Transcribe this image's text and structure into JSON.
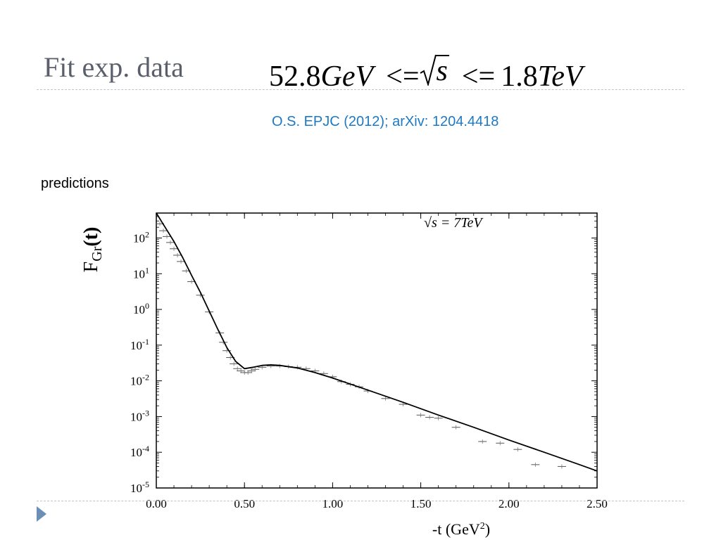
{
  "slide": {
    "title": "Fit exp. data",
    "formula": {
      "left_value": "52.8",
      "left_unit": "GeV",
      "op1": "<=",
      "sqrt_var": "s",
      "op2": "<=",
      "right_value": "1.8",
      "right_unit": "TeV"
    },
    "citation": "O.S. EPJC (2012); arXiv: 1204.4418",
    "subtitle": "predictions",
    "accent_color": "#1d79c4",
    "title_color": "#5a5f6b"
  },
  "chart_data": {
    "type": "line",
    "ylabel": "FGr(t)",
    "xlabel": "-t (GeV2)",
    "annotation": "√s = 7TeV",
    "y_scale": "log",
    "xlim": [
      0.0,
      2.5
    ],
    "ylim": [
      1e-05,
      500
    ],
    "x_ticks": [
      "0.00",
      "0.50",
      "1.00",
      "1.50",
      "2.00",
      "2.50"
    ],
    "x_tick_values": [
      0.0,
      0.5,
      1.0,
      1.5,
      2.0,
      2.5
    ],
    "y_ticks": [
      {
        "base": "10",
        "exp": "2",
        "value": 100
      },
      {
        "base": "10",
        "exp": "1",
        "value": 10
      },
      {
        "base": "10",
        "exp": "0",
        "value": 1
      },
      {
        "base": "10",
        "exp": "-1",
        "value": 0.1
      },
      {
        "base": "10",
        "exp": "-2",
        "value": 0.01
      },
      {
        "base": "10",
        "exp": "-3",
        "value": 0.001
      },
      {
        "base": "10",
        "exp": "-4",
        "value": 0.0001
      },
      {
        "base": "10",
        "exp": "-5",
        "value": 1e-05
      }
    ],
    "series": [
      {
        "kind": "fit-curve",
        "x": [
          0.0,
          0.05,
          0.1,
          0.15,
          0.2,
          0.25,
          0.3,
          0.35,
          0.4,
          0.45,
          0.5,
          0.55,
          0.6,
          0.65,
          0.7,
          0.8,
          0.9,
          1.0,
          1.2,
          1.4,
          1.6,
          1.8,
          2.0,
          2.2,
          2.4,
          2.5
        ],
        "y": [
          500,
          200,
          80,
          28,
          9,
          3,
          0.9,
          0.27,
          0.085,
          0.035,
          0.022,
          0.024,
          0.027,
          0.028,
          0.027,
          0.023,
          0.017,
          0.012,
          0.0055,
          0.0025,
          0.0011,
          0.0005,
          0.00022,
          0.0001,
          4.5e-05,
          3e-05
        ]
      },
      {
        "kind": "data-points",
        "x": [
          0.02,
          0.04,
          0.06,
          0.08,
          0.1,
          0.12,
          0.14,
          0.17,
          0.2,
          0.25,
          0.3,
          0.36,
          0.38,
          0.4,
          0.42,
          0.44,
          0.46,
          0.48,
          0.5,
          0.52,
          0.54,
          0.56,
          0.6,
          0.65,
          0.7,
          0.75,
          0.8,
          0.85,
          0.9,
          0.95,
          1.0,
          1.05,
          1.1,
          1.15,
          1.2,
          1.3,
          1.4,
          1.5,
          1.55,
          1.6,
          1.7,
          1.85,
          1.95,
          2.05,
          2.15,
          2.3
        ],
        "y": [
          250,
          160,
          110,
          75,
          50,
          33,
          22,
          12,
          6,
          2.5,
          0.85,
          0.22,
          0.12,
          0.07,
          0.045,
          0.03,
          0.022,
          0.019,
          0.017,
          0.017,
          0.019,
          0.021,
          0.024,
          0.026,
          0.026,
          0.025,
          0.024,
          0.022,
          0.019,
          0.016,
          0.013,
          0.0095,
          0.008,
          0.0068,
          0.0052,
          0.0032,
          0.0022,
          0.0011,
          0.00095,
          0.0009,
          0.0005,
          0.0002,
          0.00018,
          0.00012,
          4.5e-05,
          4e-05
        ]
      }
    ]
  }
}
